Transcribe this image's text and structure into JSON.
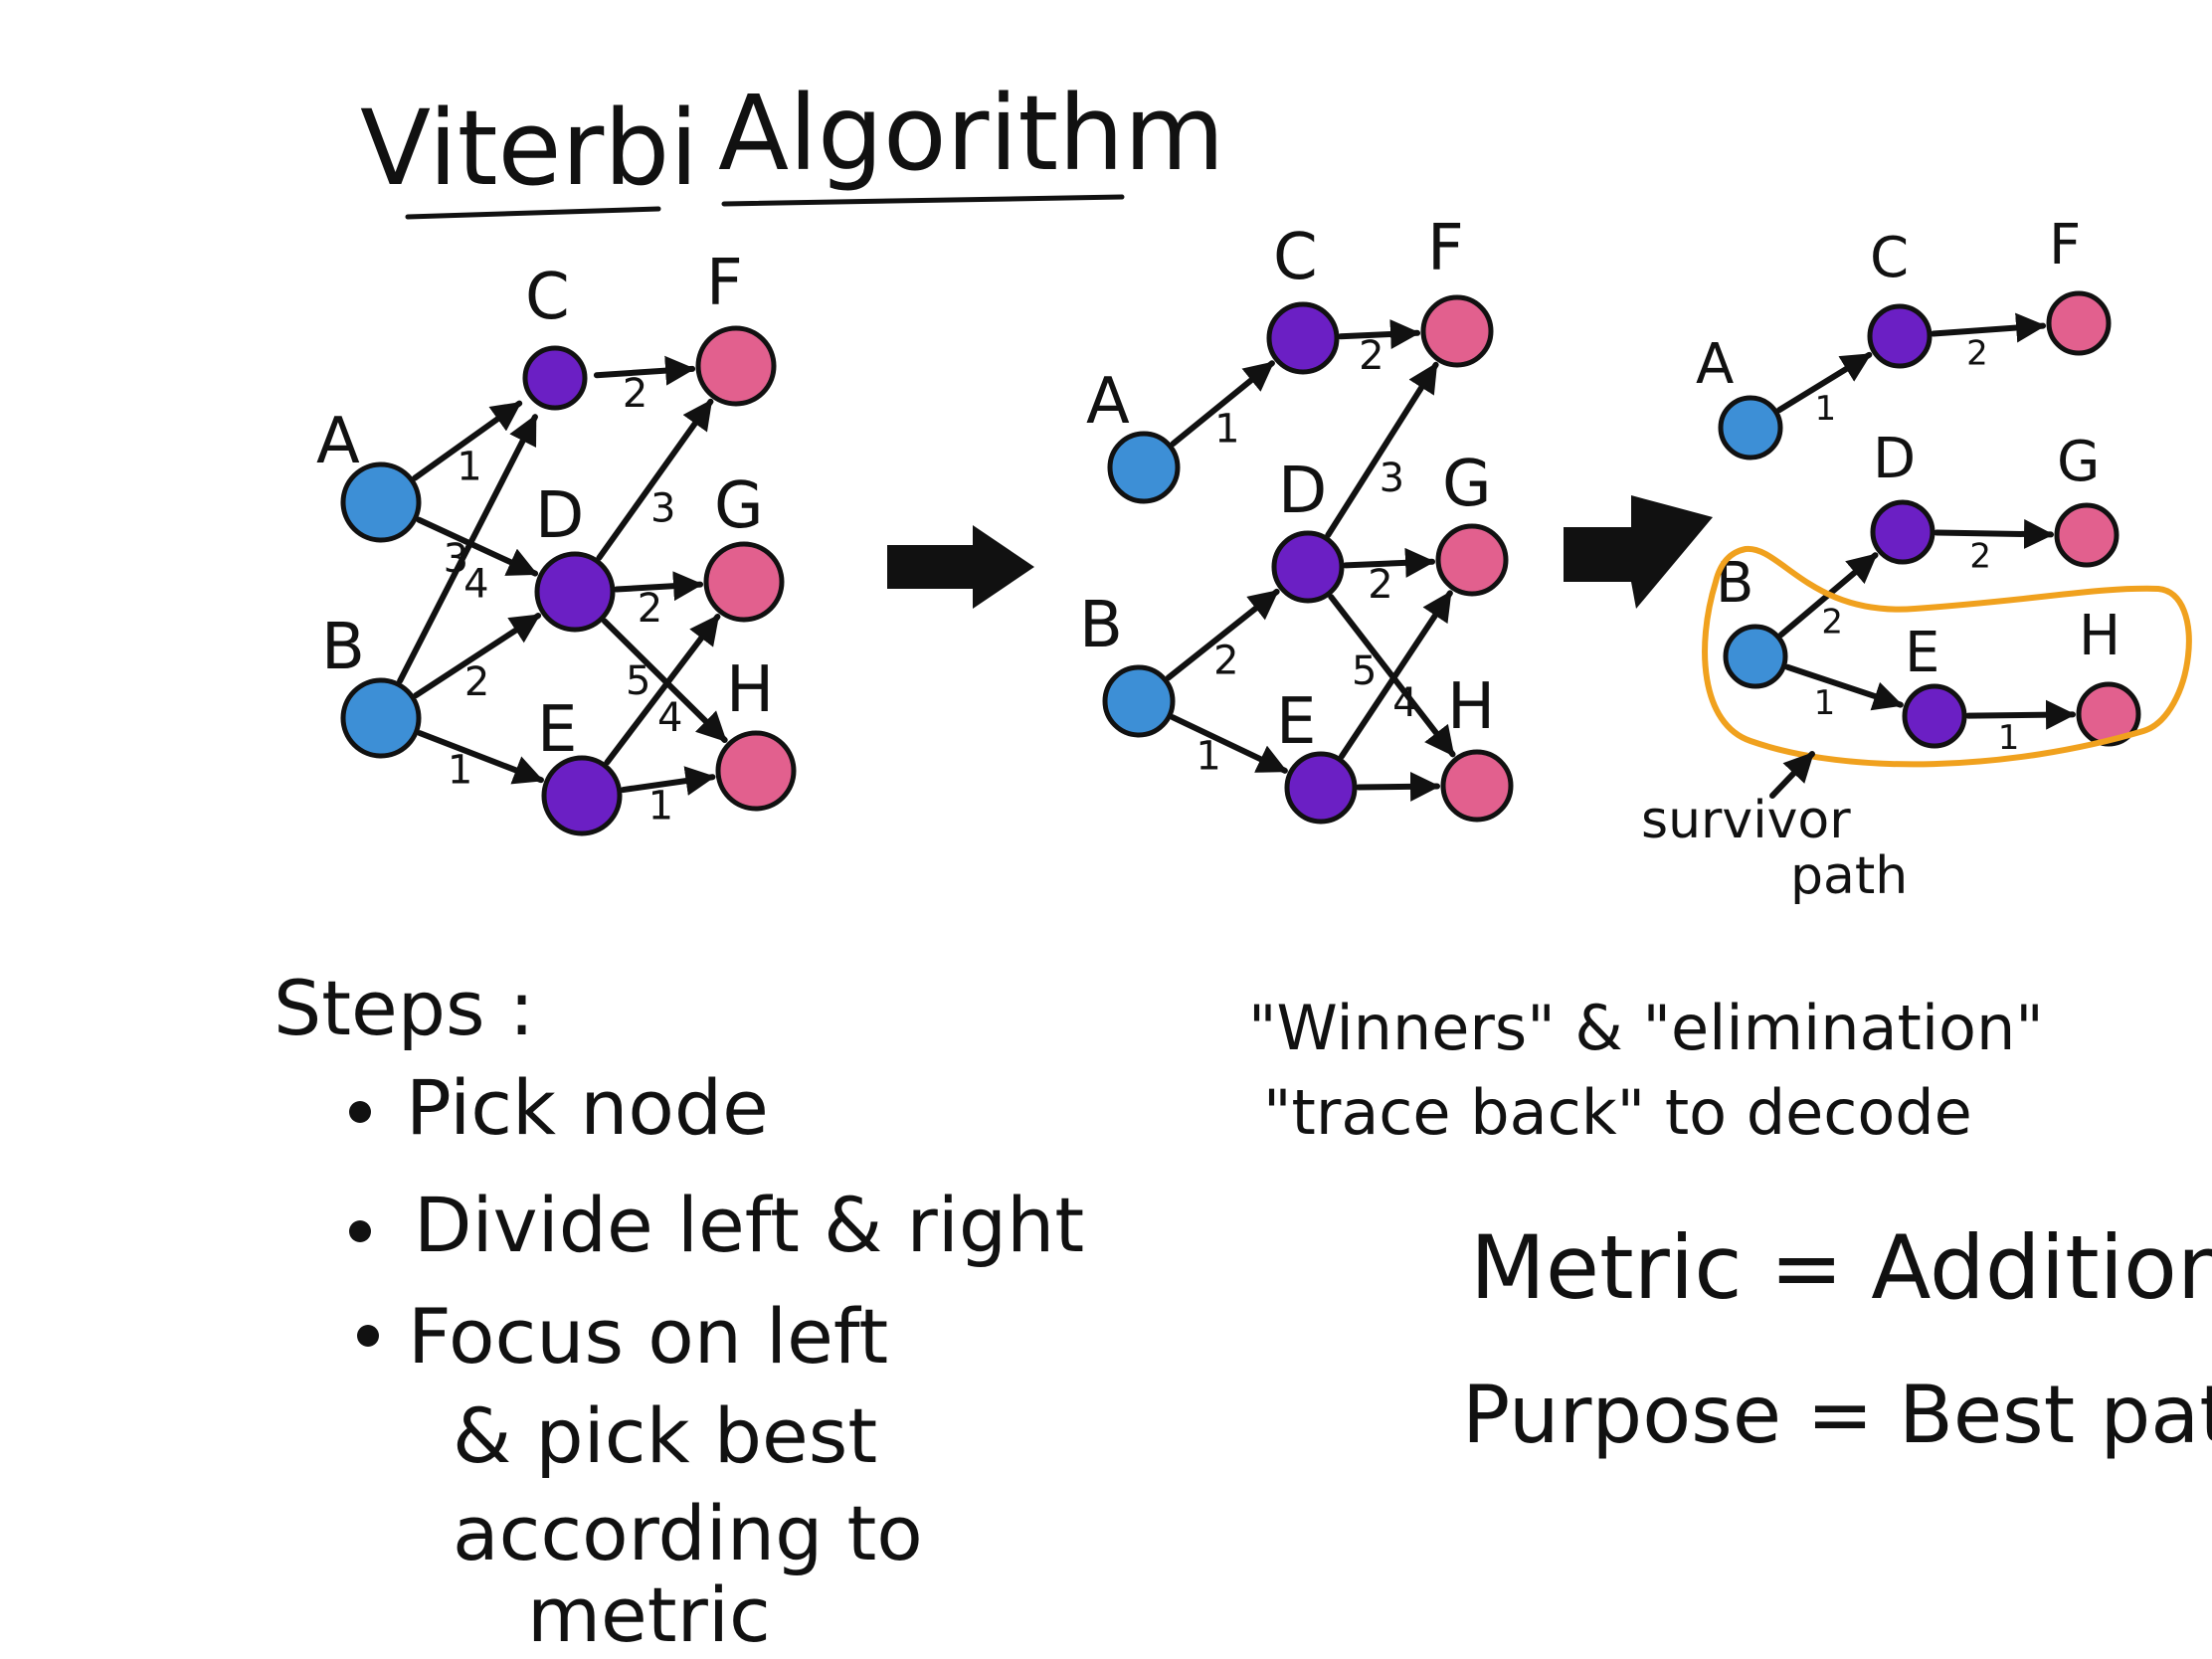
{
  "title": {
    "word1": "Viterbi",
    "word2": "Algorithm"
  },
  "colors": {
    "source": "#3d8fd6",
    "middle": "#6b1fc4",
    "target": "#e2608e",
    "highlight": "#f0a11e",
    "ink": "#111111"
  },
  "panels": [
    {
      "name": "full-trellis",
      "nodes": [
        {
          "id": "A",
          "label": "A",
          "kind": "source"
        },
        {
          "id": "B",
          "label": "B",
          "kind": "source"
        },
        {
          "id": "C",
          "label": "C",
          "kind": "middle"
        },
        {
          "id": "D",
          "label": "D",
          "kind": "middle"
        },
        {
          "id": "E",
          "label": "E",
          "kind": "middle"
        },
        {
          "id": "F",
          "label": "F",
          "kind": "target"
        },
        {
          "id": "G",
          "label": "G",
          "kind": "target"
        },
        {
          "id": "H",
          "label": "H",
          "kind": "target"
        }
      ],
      "edges": [
        {
          "from": "A",
          "to": "C",
          "weight": "1"
        },
        {
          "from": "A",
          "to": "D",
          "weight": "3"
        },
        {
          "from": "B",
          "to": "C",
          "weight": "4"
        },
        {
          "from": "B",
          "to": "D",
          "weight": "2"
        },
        {
          "from": "B",
          "to": "E",
          "weight": "1"
        },
        {
          "from": "C",
          "to": "F",
          "weight": "2"
        },
        {
          "from": "D",
          "to": "F",
          "weight": "3"
        },
        {
          "from": "D",
          "to": "G",
          "weight": "2"
        },
        {
          "from": "D",
          "to": "H",
          "weight": "5"
        },
        {
          "from": "E",
          "to": "G",
          "weight": "4"
        },
        {
          "from": "E",
          "to": "H",
          "weight": "1"
        }
      ]
    },
    {
      "name": "pruned-trellis",
      "nodes": [
        {
          "id": "A",
          "label": "A",
          "kind": "source"
        },
        {
          "id": "B",
          "label": "B",
          "kind": "source"
        },
        {
          "id": "C",
          "label": "C",
          "kind": "middle"
        },
        {
          "id": "D",
          "label": "D",
          "kind": "middle"
        },
        {
          "id": "E",
          "label": "E",
          "kind": "middle"
        },
        {
          "id": "F",
          "label": "F",
          "kind": "target"
        },
        {
          "id": "G",
          "label": "G",
          "kind": "target"
        },
        {
          "id": "H",
          "label": "H",
          "kind": "target"
        }
      ],
      "edges": [
        {
          "from": "A",
          "to": "C",
          "weight": "1"
        },
        {
          "from": "B",
          "to": "D",
          "weight": "2"
        },
        {
          "from": "B",
          "to": "E",
          "weight": "1"
        },
        {
          "from": "C",
          "to": "F",
          "weight": "2"
        },
        {
          "from": "D",
          "to": "F",
          "weight": "3"
        },
        {
          "from": "D",
          "to": "G",
          "weight": "2"
        },
        {
          "from": "D",
          "to": "H",
          "weight": "5"
        },
        {
          "from": "E",
          "to": "G",
          "weight": "4"
        },
        {
          "from": "E",
          "to": "H",
          "weight": ""
        }
      ]
    },
    {
      "name": "survivor-trellis",
      "nodes": [
        {
          "id": "A",
          "label": "A",
          "kind": "source"
        },
        {
          "id": "B",
          "label": "B",
          "kind": "source"
        },
        {
          "id": "C",
          "label": "C",
          "kind": "middle"
        },
        {
          "id": "D",
          "label": "D",
          "kind": "middle"
        },
        {
          "id": "E",
          "label": "E",
          "kind": "middle"
        },
        {
          "id": "F",
          "label": "F",
          "kind": "target"
        },
        {
          "id": "G",
          "label": "G",
          "kind": "target"
        },
        {
          "id": "H",
          "label": "H",
          "kind": "target"
        }
      ],
      "edges": [
        {
          "from": "A",
          "to": "C",
          "weight": "1"
        },
        {
          "from": "B",
          "to": "D",
          "weight": "2"
        },
        {
          "from": "B",
          "to": "E",
          "weight": "1"
        },
        {
          "from": "C",
          "to": "F",
          "weight": "2"
        },
        {
          "from": "D",
          "to": "G",
          "weight": "2"
        },
        {
          "from": "E",
          "to": "H",
          "weight": "1"
        }
      ],
      "survivor_label": [
        "survivor",
        "path"
      ]
    }
  ],
  "steps": {
    "heading": "Steps :",
    "items": [
      [
        "Pick node"
      ],
      [
        "Divide left & right"
      ],
      [
        "Focus on left",
        "& pick best",
        "according to",
        "metric"
      ]
    ]
  },
  "notes": {
    "line1": "\"Winners\" & \"elimination\"",
    "line2": "\"trace back\" to decode"
  },
  "formulas": {
    "metric": "Metric = Addition",
    "purpose": "Purpose = Best path"
  }
}
